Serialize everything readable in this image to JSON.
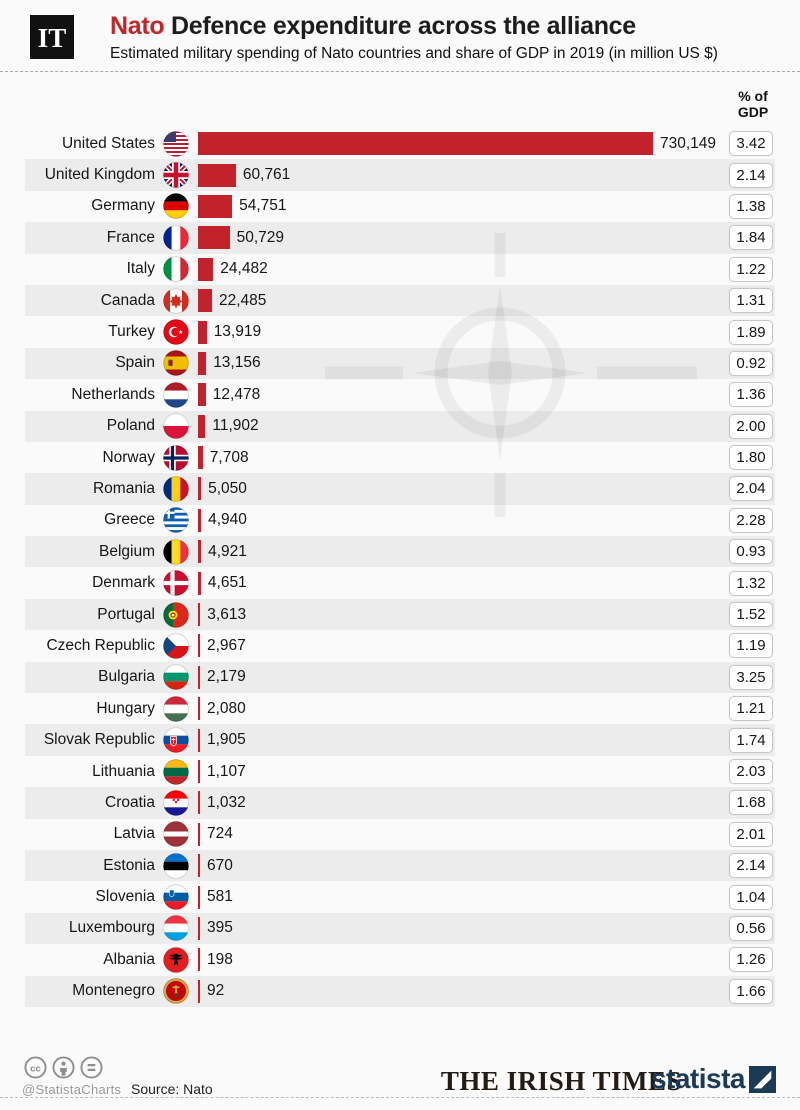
{
  "header": {
    "logo_text": "IT",
    "title_highlight": "Nato",
    "title_rest": " Defence expenditure across the alliance",
    "subtitle": "Estimated military spending of Nato countries and share of GDP in 2019 (in million US $)"
  },
  "columns": {
    "gdp_header_line1": "% of",
    "gdp_header_line2": "GDP"
  },
  "chart_data": {
    "type": "bar",
    "title": "Nato Defence expenditure across the alliance",
    "subtitle": "Estimated military spending of Nato countries and share of GDP in 2019 (in million US $)",
    "unit": "million US $",
    "year": "2019",
    "max_value": 730149,
    "orientation": "horizontal",
    "rows": [
      {
        "country": "United States",
        "flag": "us",
        "spending": 730149,
        "spending_label": "730,149",
        "gdp_share": "3.42"
      },
      {
        "country": "United Kingdom",
        "flag": "uk",
        "spending": 60761,
        "spending_label": "60,761",
        "gdp_share": "2.14"
      },
      {
        "country": "Germany",
        "flag": "de",
        "spending": 54751,
        "spending_label": "54,751",
        "gdp_share": "1.38"
      },
      {
        "country": "France",
        "flag": "fr",
        "spending": 50729,
        "spending_label": "50,729",
        "gdp_share": "1.84"
      },
      {
        "country": "Italy",
        "flag": "it",
        "spending": 24482,
        "spending_label": "24,482",
        "gdp_share": "1.22"
      },
      {
        "country": "Canada",
        "flag": "ca",
        "spending": 22485,
        "spending_label": "22,485",
        "gdp_share": "1.31"
      },
      {
        "country": "Turkey",
        "flag": "tr",
        "spending": 13919,
        "spending_label": "13,919",
        "gdp_share": "1.89"
      },
      {
        "country": "Spain",
        "flag": "es",
        "spending": 13156,
        "spending_label": "13,156",
        "gdp_share": "0.92"
      },
      {
        "country": "Netherlands",
        "flag": "nl",
        "spending": 12478,
        "spending_label": "12,478",
        "gdp_share": "1.36"
      },
      {
        "country": "Poland",
        "flag": "pl",
        "spending": 11902,
        "spending_label": "11,902",
        "gdp_share": "2.00"
      },
      {
        "country": "Norway",
        "flag": "no",
        "spending": 7708,
        "spending_label": "7,708",
        "gdp_share": "1.80"
      },
      {
        "country": "Romania",
        "flag": "ro",
        "spending": 5050,
        "spending_label": "5,050",
        "gdp_share": "2.04"
      },
      {
        "country": "Greece",
        "flag": "gr",
        "spending": 4940,
        "spending_label": "4,940",
        "gdp_share": "2.28"
      },
      {
        "country": "Belgium",
        "flag": "be",
        "spending": 4921,
        "spending_label": "4,921",
        "gdp_share": "0.93"
      },
      {
        "country": "Denmark",
        "flag": "dk",
        "spending": 4651,
        "spending_label": "4,651",
        "gdp_share": "1.32"
      },
      {
        "country": "Portugal",
        "flag": "pt",
        "spending": 3613,
        "spending_label": "3,613",
        "gdp_share": "1.52"
      },
      {
        "country": "Czech Republic",
        "flag": "cz",
        "spending": 2967,
        "spending_label": "2,967",
        "gdp_share": "1.19"
      },
      {
        "country": "Bulgaria",
        "flag": "bg",
        "spending": 2179,
        "spending_label": "2,179",
        "gdp_share": "3.25"
      },
      {
        "country": "Hungary",
        "flag": "hu",
        "spending": 2080,
        "spending_label": "2,080",
        "gdp_share": "1.21"
      },
      {
        "country": "Slovak Republic",
        "flag": "sk",
        "spending": 1905,
        "spending_label": "1,905",
        "gdp_share": "1.74"
      },
      {
        "country": "Lithuania",
        "flag": "lt",
        "spending": 1107,
        "spending_label": "1,107",
        "gdp_share": "2.03"
      },
      {
        "country": "Croatia",
        "flag": "hr",
        "spending": 1032,
        "spending_label": "1,032",
        "gdp_share": "1.68"
      },
      {
        "country": "Latvia",
        "flag": "lv",
        "spending": 724,
        "spending_label": "724",
        "gdp_share": "2.01"
      },
      {
        "country": "Estonia",
        "flag": "ee",
        "spending": 670,
        "spending_label": "670",
        "gdp_share": "2.14"
      },
      {
        "country": "Slovenia",
        "flag": "si",
        "spending": 581,
        "spending_label": "581",
        "gdp_share": "1.04"
      },
      {
        "country": "Luxembourg",
        "flag": "lu",
        "spending": 395,
        "spending_label": "395",
        "gdp_share": "0.56"
      },
      {
        "country": "Albania",
        "flag": "al",
        "spending": 198,
        "spending_label": "198",
        "gdp_share": "1.26"
      },
      {
        "country": "Montenegro",
        "flag": "me",
        "spending": 92,
        "spending_label": "92",
        "gdp_share": "1.66"
      }
    ]
  },
  "footer": {
    "cc_handle": "@StatistaCharts",
    "source": "Source: Nato",
    "publisher": "THE IRISH TIMES",
    "brand": "statista"
  },
  "colors": {
    "bar": "#c1222b",
    "title_highlight": "#c32627",
    "stripe": "#ececec",
    "brand_navy": "#1b3a55",
    "background": "#fafafa"
  }
}
